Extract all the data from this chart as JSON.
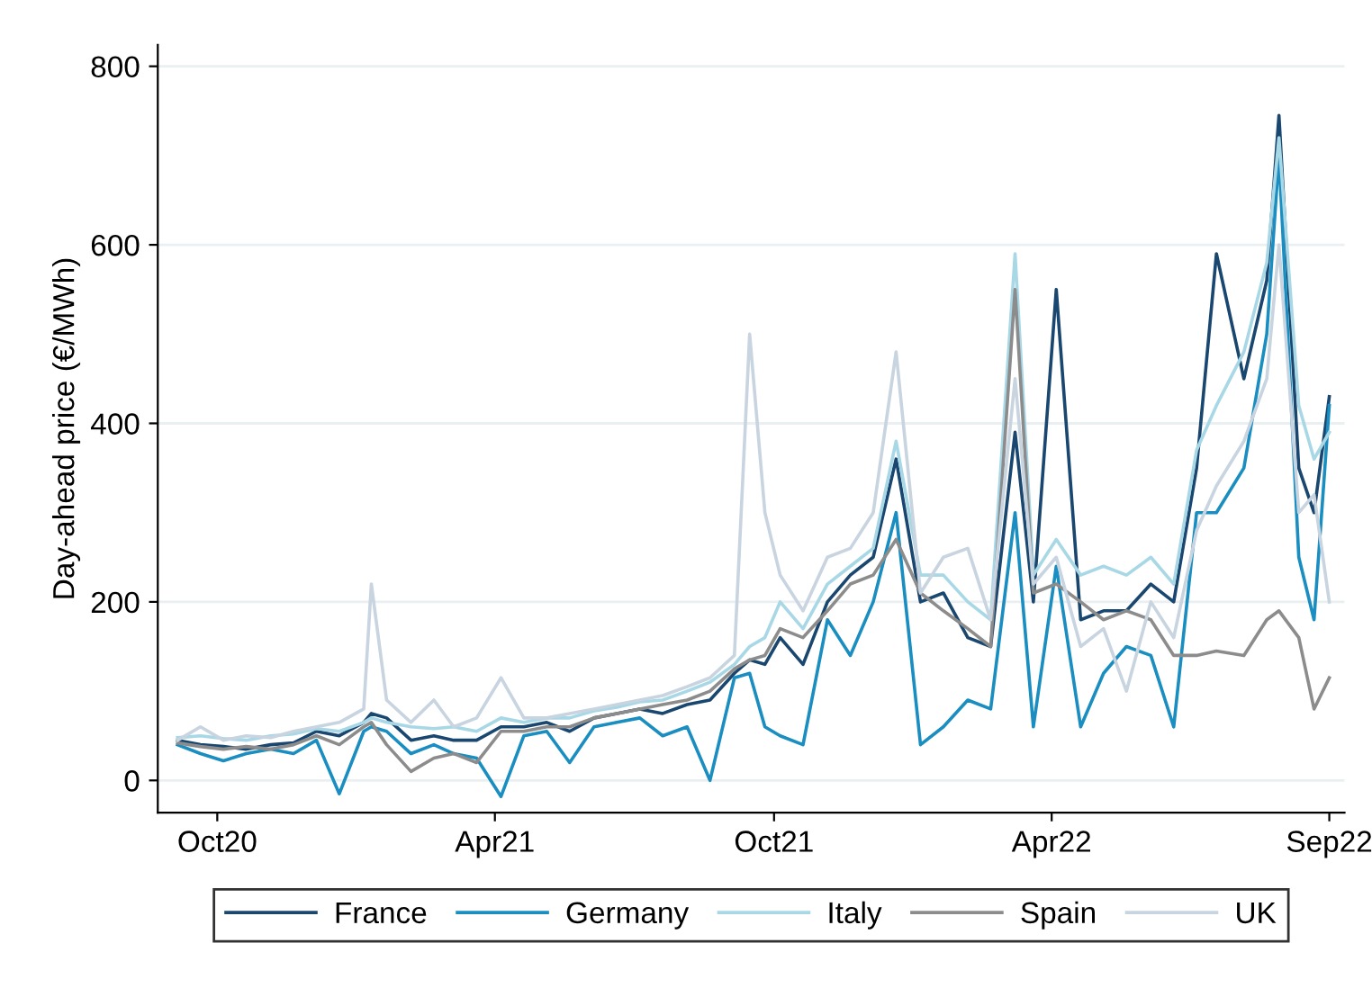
{
  "chart_data": {
    "type": "line",
    "ylabel": "Day-ahead price (€/MWh)",
    "x": [
      "2020-09-05",
      "2020-09-20",
      "2020-10-05",
      "2020-10-20",
      "2020-11-05",
      "2020-11-20",
      "2020-12-05",
      "2020-12-20",
      "2021-01-05",
      "2021-01-10",
      "2021-01-20",
      "2021-02-05",
      "2021-02-20",
      "2021-03-05",
      "2021-03-20",
      "2021-04-05",
      "2021-04-20",
      "2021-05-05",
      "2021-05-20",
      "2021-06-05",
      "2021-06-20",
      "2021-07-05",
      "2021-07-20",
      "2021-08-05",
      "2021-08-20",
      "2021-09-05",
      "2021-09-15",
      "2021-09-25",
      "2021-10-05",
      "2021-10-20",
      "2021-11-05",
      "2021-11-20",
      "2021-12-05",
      "2021-12-20",
      "2022-01-05",
      "2022-01-20",
      "2022-02-05",
      "2022-02-20",
      "2022-03-08",
      "2022-03-20",
      "2022-04-04",
      "2022-04-20",
      "2022-05-05",
      "2022-05-20",
      "2022-06-05",
      "2022-06-20",
      "2022-07-05",
      "2022-07-18",
      "2022-08-05",
      "2022-08-20",
      "2022-08-28",
      "2022-09-10",
      "2022-09-20",
      "2022-09-30"
    ],
    "series": [
      {
        "name": "France",
        "color": "#1a476f",
        "values": [
          45,
          40,
          38,
          35,
          40,
          42,
          55,
          50,
          65,
          75,
          70,
          45,
          50,
          45,
          45,
          60,
          60,
          65,
          55,
          70,
          75,
          80,
          75,
          85,
          90,
          120,
          135,
          130,
          160,
          130,
          200,
          230,
          250,
          360,
          200,
          210,
          160,
          150,
          390,
          200,
          550,
          180,
          190,
          190,
          220,
          200,
          350,
          590,
          450,
          560,
          745,
          350,
          300,
          430
        ]
      },
      {
        "name": "Germany",
        "color": "#1a8ec0",
        "values": [
          40,
          30,
          22,
          30,
          35,
          30,
          45,
          -15,
          55,
          60,
          55,
          30,
          40,
          30,
          25,
          -18,
          50,
          55,
          20,
          60,
          65,
          70,
          50,
          60,
          0,
          115,
          120,
          60,
          50,
          40,
          180,
          140,
          200,
          300,
          40,
          60,
          90,
          80,
          300,
          60,
          240,
          60,
          120,
          150,
          140,
          60,
          300,
          300,
          350,
          500,
          700,
          250,
          180,
          420
        ]
      },
      {
        "name": "Italy",
        "color": "#a8d8e6",
        "values": [
          48,
          50,
          47,
          45,
          50,
          52,
          58,
          55,
          65,
          70,
          65,
          60,
          58,
          60,
          55,
          70,
          65,
          70,
          70,
          78,
          82,
          88,
          90,
          100,
          110,
          130,
          150,
          160,
          200,
          170,
          220,
          240,
          260,
          380,
          230,
          230,
          200,
          180,
          590,
          230,
          270,
          230,
          240,
          230,
          250,
          220,
          370,
          420,
          480,
          580,
          720,
          420,
          360,
          390
        ]
      },
      {
        "name": "Spain",
        "color": "#8c8c8c",
        "values": [
          42,
          38,
          35,
          38,
          35,
          40,
          50,
          40,
          60,
          65,
          40,
          10,
          25,
          30,
          20,
          55,
          55,
          60,
          60,
          70,
          75,
          80,
          85,
          90,
          100,
          125,
          135,
          140,
          170,
          160,
          190,
          220,
          230,
          270,
          210,
          190,
          170,
          150,
          550,
          210,
          220,
          200,
          180,
          190,
          180,
          140,
          140,
          145,
          140,
          180,
          190,
          160,
          80,
          115
        ]
      },
      {
        "name": "UK",
        "color": "#c8d4e0",
        "values": [
          45,
          60,
          45,
          50,
          48,
          55,
          60,
          65,
          80,
          220,
          90,
          65,
          90,
          60,
          70,
          115,
          70,
          70,
          75,
          80,
          85,
          90,
          95,
          105,
          115,
          140,
          500,
          300,
          230,
          190,
          250,
          260,
          300,
          480,
          210,
          250,
          260,
          180,
          450,
          220,
          250,
          150,
          170,
          100,
          200,
          160,
          280,
          330,
          380,
          450,
          600,
          300,
          320,
          200
        ]
      }
    ],
    "xlim": [
      "2020-08-23",
      "2022-10-10"
    ],
    "xticks": [
      {
        "value": "2020-10-01",
        "label": "Oct20"
      },
      {
        "value": "2021-04-01",
        "label": "Apr21"
      },
      {
        "value": "2021-10-01",
        "label": "Oct21"
      },
      {
        "value": "2022-04-01",
        "label": "Apr22"
      },
      {
        "value": "2022-09-30",
        "label": "Sep22"
      }
    ],
    "ylim": [
      -36,
      824
    ],
    "yticks": [
      0,
      200,
      400,
      600,
      800
    ],
    "grid": "y",
    "legend": "bottom",
    "marker": "none",
    "line_style": "solid"
  }
}
